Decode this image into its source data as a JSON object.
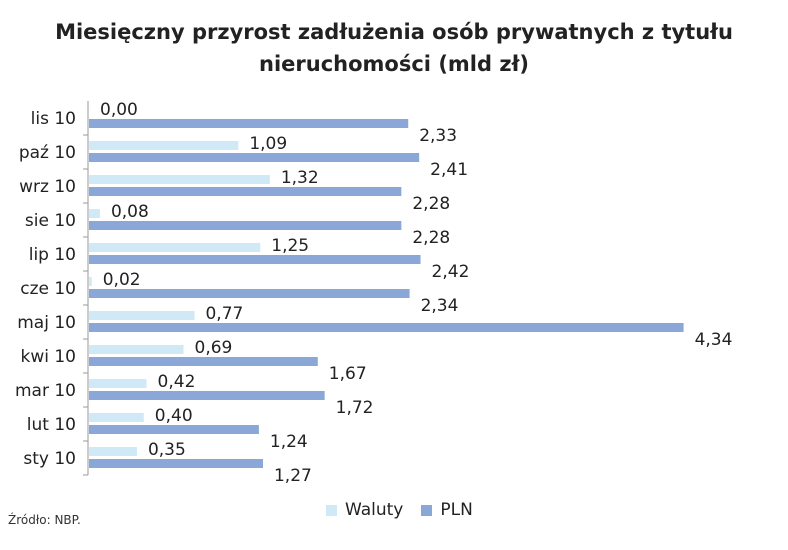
{
  "chart_data": {
    "type": "bar",
    "orientation": "horizontal",
    "title_line1": "Miesięczny przyrost zadłużenia osób prywatnych z tytułu",
    "title_line2": "nieruchomości (mld zł)",
    "categories": [
      "lis 10",
      "paź 10",
      "wrz 10",
      "sie 10",
      "lip 10",
      "cze 10",
      "maj 10",
      "kwi 10",
      "mar 10",
      "lut 10",
      "sty 10"
    ],
    "series": [
      {
        "name": "Waluty",
        "color": "#cfe9f7",
        "values": [
          0.0,
          1.09,
          1.32,
          0.08,
          1.25,
          0.02,
          0.77,
          0.69,
          0.42,
          0.4,
          0.35
        ],
        "labels": [
          "0,00",
          "1,09",
          "1,32",
          "0,08",
          "1,25",
          "0,02",
          "0,77",
          "0,69",
          "0,42",
          "0,40",
          "0,35"
        ]
      },
      {
        "name": "PLN",
        "color": "#8aa7d8",
        "values": [
          2.33,
          2.41,
          2.28,
          2.28,
          2.42,
          2.34,
          4.34,
          1.67,
          1.72,
          1.24,
          1.27
        ],
        "labels": [
          "2,33",
          "2,41",
          "2,28",
          "2,28",
          "2,42",
          "2,34",
          "4,34",
          "1,67",
          "1,72",
          "1,24",
          "1,27"
        ]
      }
    ],
    "legend_position": "bottom",
    "grid": false
  },
  "source": "Źródło: NBP."
}
